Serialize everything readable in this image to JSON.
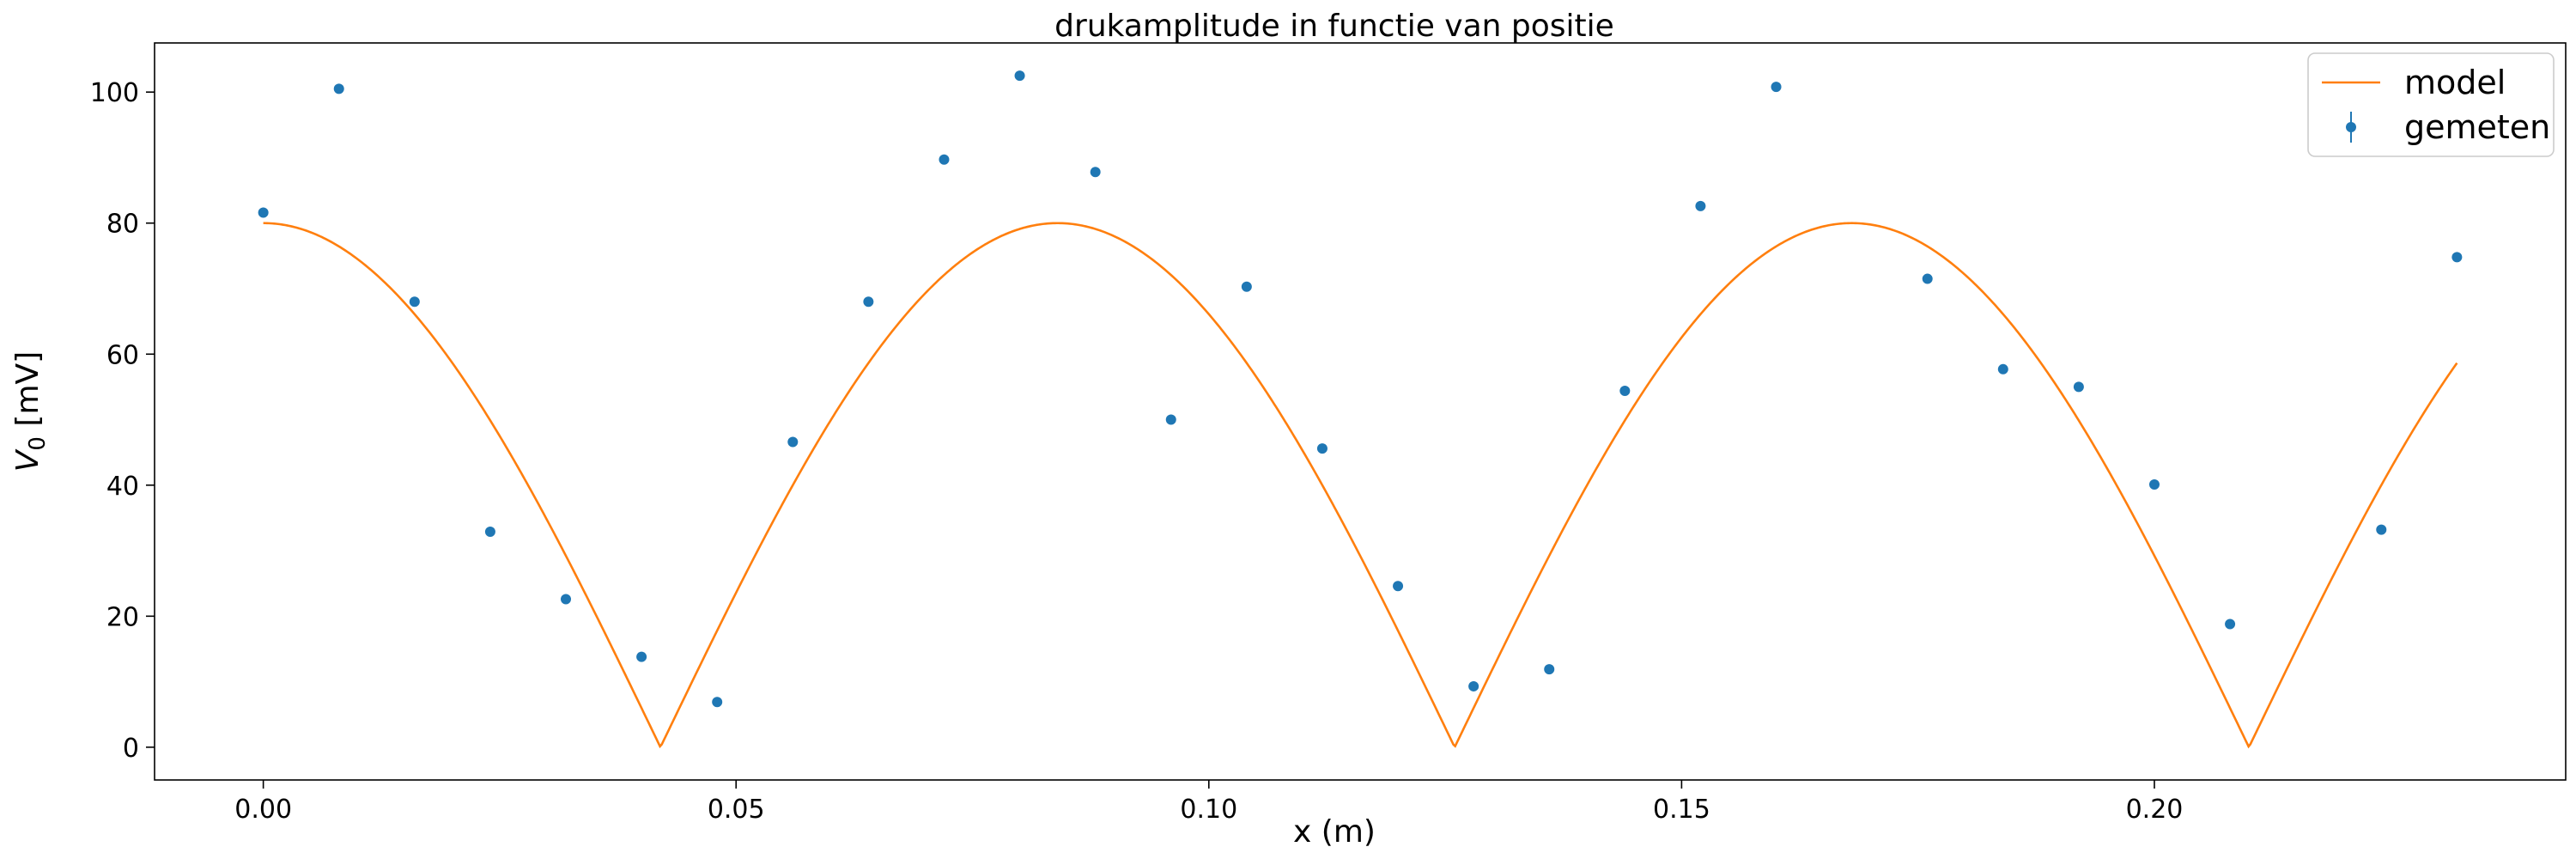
{
  "chart_data": {
    "type": "scatter",
    "title": "drukamplitude in functie van positie",
    "xlabel": "x (m)",
    "ylabel_base": "V",
    "ylabel_sub": "0",
    "ylabel_rest": " [mV]",
    "xlim": [
      -0.0115,
      0.2435
    ],
    "ylim": [
      -5,
      107.5
    ],
    "xticks": [
      0.0,
      0.05,
      0.1,
      0.15,
      0.2
    ],
    "xtick_labels": [
      "0.00",
      "0.05",
      "0.10",
      "0.15",
      "0.20"
    ],
    "yticks": [
      0,
      20,
      40,
      60,
      80,
      100
    ],
    "ytick_labels": [
      "0",
      "20",
      "40",
      "60",
      "80",
      "100"
    ],
    "grid": false,
    "legend_position": "top-right",
    "series": [
      {
        "name": "model",
        "kind": "line",
        "color": "#ff7f0e",
        "function": "abs_cos",
        "amplitude": 80,
        "wavelength": 0.168,
        "x_range": [
          0.0,
          0.232
        ]
      },
      {
        "name": "gemeten",
        "kind": "points",
        "color": "#1f77b4",
        "x": [
          0.0,
          0.008,
          0.016,
          0.024,
          0.032,
          0.04,
          0.048,
          0.056,
          0.064,
          0.072,
          0.08,
          0.088,
          0.096,
          0.104,
          0.112,
          0.12,
          0.128,
          0.136,
          0.144,
          0.152,
          0.16,
          0.176,
          0.184,
          0.192,
          0.2,
          0.208,
          0.224,
          0.232
        ],
        "y": [
          81.6,
          100.5,
          68.0,
          32.9,
          22.6,
          13.8,
          6.9,
          46.6,
          68.0,
          89.7,
          102.5,
          87.8,
          50.0,
          70.3,
          45.6,
          24.6,
          9.3,
          11.9,
          54.4,
          82.6,
          100.8,
          71.5,
          57.7,
          55.0,
          40.1,
          18.8,
          33.2,
          74.8
        ]
      }
    ]
  }
}
